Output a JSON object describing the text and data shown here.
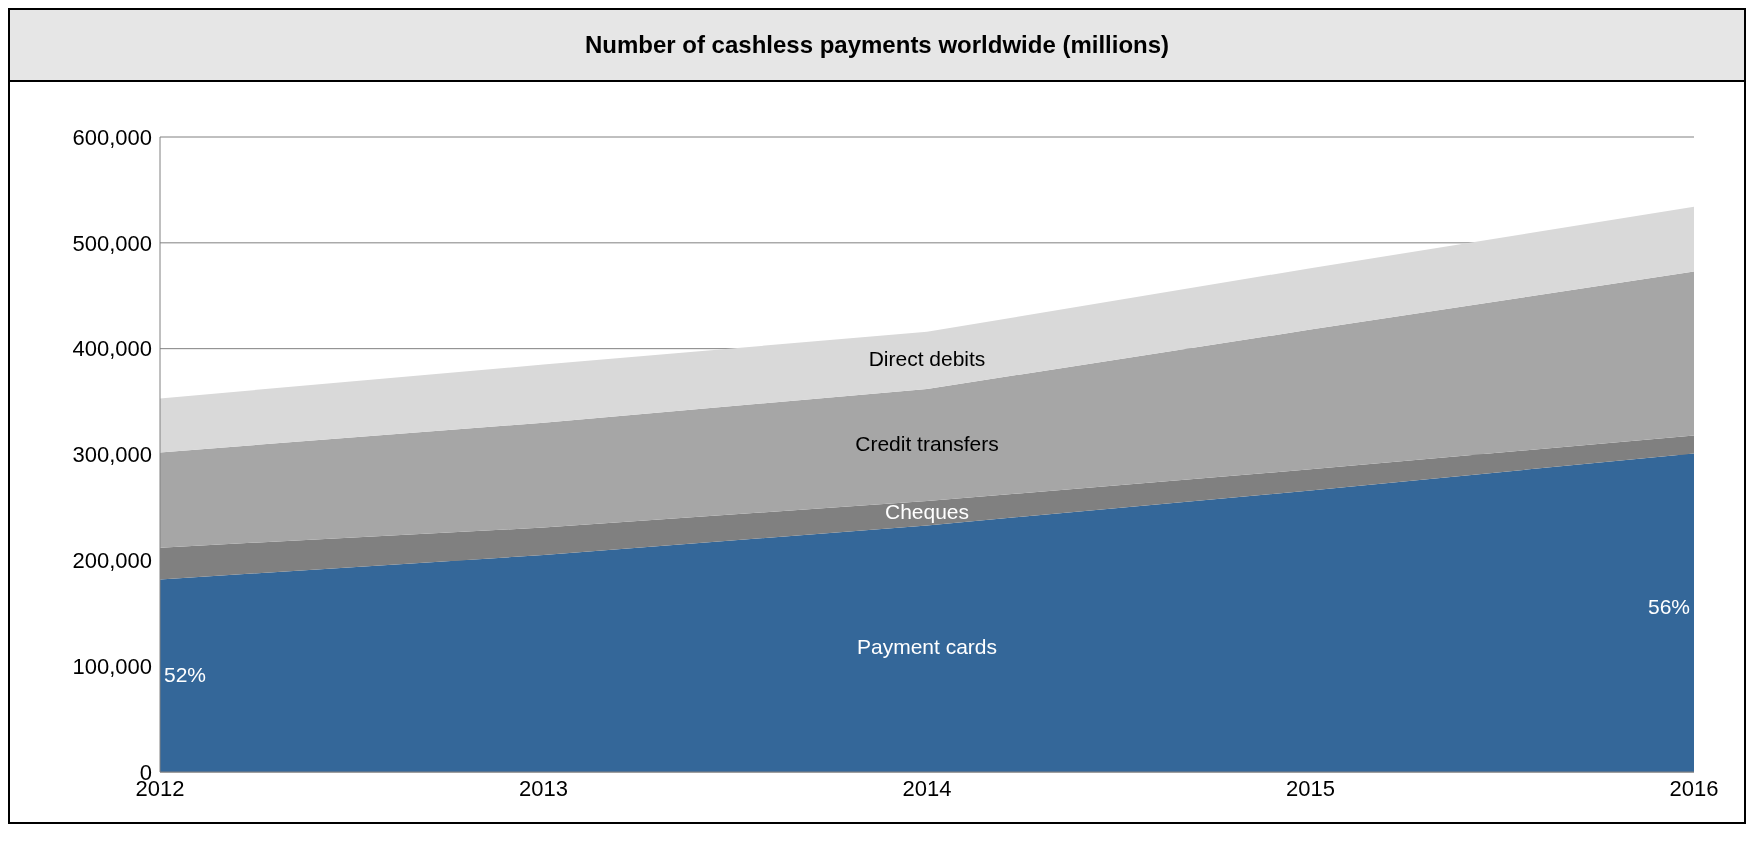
{
  "chart_data": {
    "type": "area",
    "stacked": true,
    "title": "Number of cashless payments worldwide (millions)",
    "categories": [
      "2012",
      "2013",
      "2014",
      "2015",
      "2016"
    ],
    "series": [
      {
        "name": "Payment cards",
        "color": "#346799",
        "values": [
          182000,
          205000,
          233000,
          266000,
          301000
        ]
      },
      {
        "name": "Cheques",
        "color": "#808080",
        "values": [
          30000,
          26000,
          23000,
          20000,
          17000
        ]
      },
      {
        "name": "Credit transfers",
        "color": "#a6a6a6",
        "values": [
          90000,
          99000,
          106000,
          132000,
          155000
        ]
      },
      {
        "name": "Direct debits",
        "color": "#d9d9d9",
        "values": [
          51000,
          55000,
          54000,
          58000,
          61000
        ]
      }
    ],
    "ylim": [
      0,
      600000
    ],
    "yticks": [
      {
        "value": 0,
        "label": "0"
      },
      {
        "value": 100000,
        "label": "100,000"
      },
      {
        "value": 200000,
        "label": "200,000"
      },
      {
        "value": 300000,
        "label": "300,000"
      },
      {
        "value": 400000,
        "label": "400,000"
      },
      {
        "value": 500000,
        "label": "500,000"
      },
      {
        "value": 600000,
        "label": "600,000"
      }
    ],
    "grid": "y",
    "annotations": [
      {
        "text": "52%",
        "x": "2012",
        "y": 90000
      },
      {
        "text": "56%",
        "x": "2016",
        "y": 155000
      }
    ]
  }
}
